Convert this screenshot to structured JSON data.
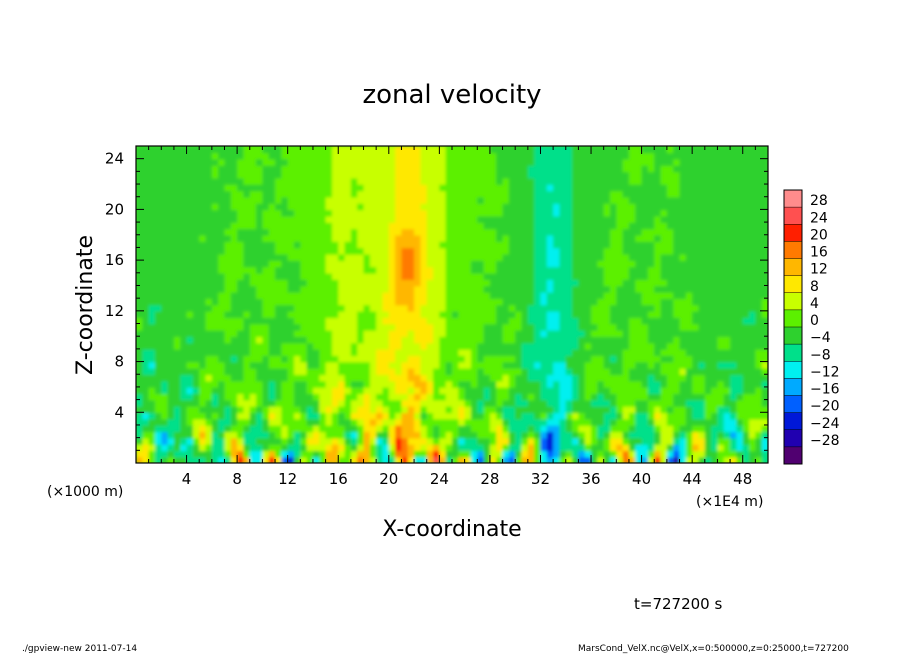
{
  "chart_data": {
    "type": "heatmap",
    "title": "zonal velocity",
    "xlabel": "X-coordinate",
    "ylabel": "Z-coordinate",
    "x_unit_left": "(×1000 m)",
    "x_unit_right": "(×1E4 m)",
    "x_ticks": [
      4,
      8,
      12,
      16,
      20,
      24,
      28,
      32,
      36,
      40,
      44,
      48
    ],
    "y_ticks": [
      4,
      8,
      12,
      16,
      20,
      24
    ],
    "xlim": [
      0,
      50
    ],
    "ylim": [
      0,
      25
    ],
    "colorbar": {
      "levels": [
        28,
        24,
        20,
        16,
        12,
        8,
        4,
        0,
        -4,
        -8,
        -12,
        -16,
        -20,
        -24,
        -28
      ],
      "colors": [
        "#ff8c8c",
        "#ff5050",
        "#ff1f00",
        "#ff7a00",
        "#ffb700",
        "#ffe800",
        "#c8ff00",
        "#5cf000",
        "#2ed12e",
        "#00e08a",
        "#00f0f0",
        "#00aaff",
        "#0060ff",
        "#0018d8",
        "#2000b0",
        "#500070"
      ]
    },
    "features": {
      "jet": {
        "x": 21.5,
        "z_top": 19,
        "z_bottom": 12,
        "value": 18
      },
      "cool_band": {
        "x": 33,
        "value": -8
      },
      "warm_band": {
        "x": 21.5,
        "value": 9
      }
    },
    "time_label": "t=727200 s"
  },
  "footer": {
    "left": "./gpview-new  2011-07-14",
    "right": "MarsCond_VelX.nc@VelX,x=0:500000,z=0:25000,t=727200"
  }
}
